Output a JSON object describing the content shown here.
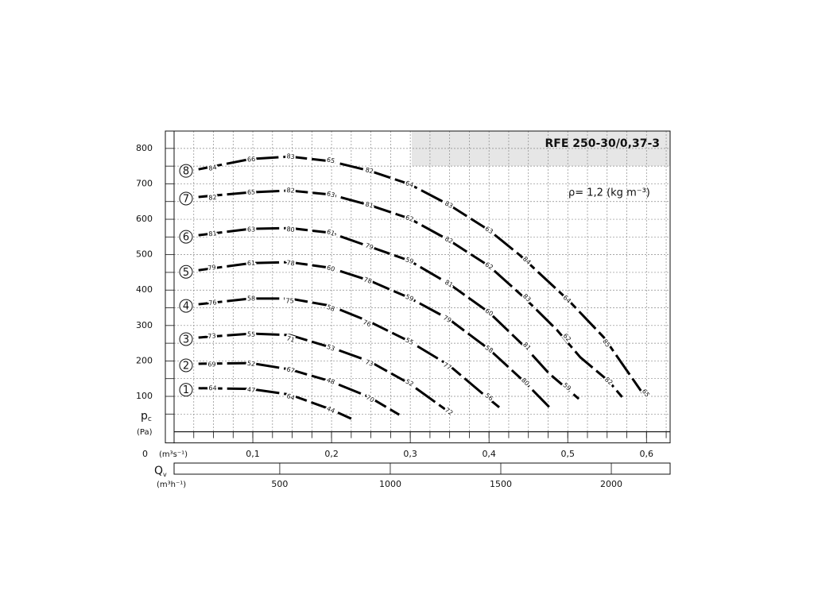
{
  "chart_data": {
    "type": "line",
    "title": "RFE 250-30/0,37-3",
    "note": "ρ= 1,2 (kg m⁻³)",
    "y_label": "p",
    "y_label_sub": "c",
    "y_unit": "(Pa)",
    "x_zero_label": "0",
    "x_unit": "(m³s⁻¹)",
    "x2_label": "Q",
    "x2_label_sub": "v",
    "x2_unit": "(m³h⁻¹)",
    "xlim": [
      0,
      0.63
    ],
    "ylim": [
      0,
      849
    ],
    "x2lim": [
      22,
      2266
    ],
    "xticks": [
      {
        "value": 0.1,
        "label": "0,1"
      },
      {
        "value": 0.2,
        "label": "0,2"
      },
      {
        "value": 0.3,
        "label": "0,3"
      },
      {
        "value": 0.4,
        "label": "0,4"
      },
      {
        "value": 0.5,
        "label": "0,5"
      },
      {
        "value": 0.6,
        "label": "0,6"
      }
    ],
    "x2ticks": [
      500,
      1000,
      1500,
      2000
    ],
    "yticks": [
      100,
      200,
      300,
      400,
      500,
      600,
      700,
      800
    ],
    "xgrid": [
      0.025,
      0.05,
      0.075,
      0.1,
      0.125,
      0.15,
      0.175,
      0.2,
      0.225,
      0.25,
      0.275,
      0.3,
      0.325,
      0.35,
      0.375,
      0.4,
      0.425,
      0.45,
      0.475,
      0.5,
      0.525,
      0.55,
      0.575,
      0.6,
      0.625
    ],
    "ygrid": [
      50,
      100,
      150,
      200,
      250,
      300,
      350,
      400,
      450,
      500,
      550,
      600,
      650,
      700,
      750,
      800
    ],
    "grid": true,
    "label_colors": {
      "efficiency": "#111111",
      "sound": "#b03030"
    },
    "series": [
      {
        "name": "1",
        "color": "#000000",
        "x": [
          0.031,
          0.097,
          0.147,
          0.198,
          0.225
        ],
        "values": [
          123,
          121,
          105,
          64,
          37
        ],
        "labels": [
          {
            "text": "64",
            "x": 0.049,
            "y": 123,
            "kind": "efficiency"
          },
          {
            "text": "47",
            "x": 0.098,
            "y": 118,
            "kind": "sound"
          },
          {
            "text": "64",
            "x": 0.148,
            "y": 98,
            "kind": "efficiency"
          },
          {
            "text": "44",
            "x": 0.199,
            "y": 62,
            "kind": "sound"
          }
        ]
      },
      {
        "name": "2",
        "color": "#000000",
        "x": [
          0.031,
          0.097,
          0.147,
          0.198,
          0.248,
          0.286
        ],
        "values": [
          192,
          194,
          176,
          143,
          98,
          48
        ],
        "labels": [
          {
            "text": "69",
            "x": 0.048,
            "y": 190,
            "kind": "efficiency"
          },
          {
            "text": "52",
            "x": 0.098,
            "y": 192,
            "kind": "sound"
          },
          {
            "text": "67",
            "x": 0.148,
            "y": 174,
            "kind": "efficiency"
          },
          {
            "text": "48",
            "x": 0.199,
            "y": 143,
            "kind": "sound"
          },
          {
            "text": "70",
            "x": 0.249,
            "y": 93,
            "kind": "efficiency"
          }
        ]
      },
      {
        "name": "3",
        "color": "#000000",
        "x": [
          0.031,
          0.097,
          0.147,
          0.198,
          0.248,
          0.299,
          0.344
        ],
        "values": [
          266,
          277,
          273,
          239,
          199,
          136,
          64
        ],
        "labels": [
          {
            "text": "73",
            "x": 0.048,
            "y": 270,
            "kind": "efficiency"
          },
          {
            "text": "55",
            "x": 0.098,
            "y": 275,
            "kind": "sound"
          },
          {
            "text": "71",
            "x": 0.148,
            "y": 261,
            "kind": "efficiency"
          },
          {
            "text": "53",
            "x": 0.199,
            "y": 237,
            "kind": "sound"
          },
          {
            "text": "73",
            "x": 0.248,
            "y": 194,
            "kind": "efficiency"
          },
          {
            "text": "52",
            "x": 0.299,
            "y": 138,
            "kind": "sound"
          },
          {
            "text": "72",
            "x": 0.349,
            "y": 57,
            "kind": "efficiency"
          }
        ]
      },
      {
        "name": "4",
        "color": "#000000",
        "x": [
          0.031,
          0.097,
          0.147,
          0.198,
          0.248,
          0.299,
          0.349,
          0.397,
          0.413
        ],
        "values": [
          360,
          376,
          376,
          356,
          311,
          255,
          188,
          98,
          69
        ],
        "labels": [
          {
            "text": "76",
            "x": 0.049,
            "y": 364,
            "kind": "efficiency"
          },
          {
            "text": "58",
            "x": 0.098,
            "y": 376,
            "kind": "sound"
          },
          {
            "text": "75",
            "x": 0.147,
            "y": 369,
            "kind": "efficiency"
          },
          {
            "text": "58",
            "x": 0.199,
            "y": 349,
            "kind": "sound"
          },
          {
            "text": "76",
            "x": 0.245,
            "y": 306,
            "kind": "efficiency"
          },
          {
            "text": "55",
            "x": 0.299,
            "y": 255,
            "kind": "sound"
          },
          {
            "text": "77",
            "x": 0.347,
            "y": 185,
            "kind": "efficiency"
          },
          {
            "text": "56",
            "x": 0.4,
            "y": 98,
            "kind": "sound"
          }
        ]
      },
      {
        "name": "5",
        "color": "#000000",
        "x": [
          0.031,
          0.097,
          0.147,
          0.198,
          0.248,
          0.299,
          0.349,
          0.4,
          0.445,
          0.479
        ],
        "values": [
          456,
          476,
          479,
          463,
          427,
          378,
          318,
          233,
          141,
          64
        ],
        "labels": [
          {
            "text": "79",
            "x": 0.048,
            "y": 463,
            "kind": "efficiency"
          },
          {
            "text": "61",
            "x": 0.098,
            "y": 476,
            "kind": "sound"
          },
          {
            "text": "78",
            "x": 0.148,
            "y": 476,
            "kind": "efficiency"
          },
          {
            "text": "60",
            "x": 0.199,
            "y": 461,
            "kind": "sound"
          },
          {
            "text": "78",
            "x": 0.246,
            "y": 427,
            "kind": "efficiency"
          },
          {
            "text": "59",
            "x": 0.299,
            "y": 378,
            "kind": "sound"
          },
          {
            "text": "79",
            "x": 0.347,
            "y": 318,
            "kind": "efficiency"
          },
          {
            "text": "58",
            "x": 0.4,
            "y": 233,
            "kind": "sound"
          },
          {
            "text": "80",
            "x": 0.446,
            "y": 141,
            "kind": "efficiency"
          }
        ]
      },
      {
        "name": "6",
        "color": "#000000",
        "x": [
          0.031,
          0.097,
          0.147,
          0.198,
          0.248,
          0.299,
          0.349,
          0.4,
          0.445,
          0.476,
          0.514
        ],
        "values": [
          555,
          573,
          575,
          562,
          523,
          483,
          418,
          337,
          241,
          165,
          93
        ],
        "labels": [
          {
            "text": "81",
            "x": 0.049,
            "y": 559,
            "kind": "efficiency"
          },
          {
            "text": "63",
            "x": 0.098,
            "y": 571,
            "kind": "sound"
          },
          {
            "text": "80",
            "x": 0.148,
            "y": 571,
            "kind": "efficiency"
          },
          {
            "text": "61",
            "x": 0.199,
            "y": 562,
            "kind": "sound"
          },
          {
            "text": "79",
            "x": 0.248,
            "y": 523,
            "kind": "efficiency"
          },
          {
            "text": "59",
            "x": 0.299,
            "y": 483,
            "kind": "sound"
          },
          {
            "text": "81",
            "x": 0.349,
            "y": 418,
            "kind": "efficiency"
          },
          {
            "text": "60",
            "x": 0.4,
            "y": 337,
            "kind": "sound"
          },
          {
            "text": "81",
            "x": 0.448,
            "y": 241,
            "kind": "efficiency"
          },
          {
            "text": "59",
            "x": 0.499,
            "y": 127,
            "kind": "sound"
          }
        ]
      },
      {
        "name": "7",
        "color": "#000000",
        "x": [
          0.031,
          0.097,
          0.147,
          0.198,
          0.248,
          0.299,
          0.349,
          0.4,
          0.445,
          0.486,
          0.516,
          0.552,
          0.569
        ],
        "values": [
          663,
          676,
          681,
          670,
          640,
          602,
          541,
          468,
          378,
          288,
          210,
          143,
          98
        ],
        "labels": [
          {
            "text": "82",
            "x": 0.049,
            "y": 661,
            "kind": "efficiency"
          },
          {
            "text": "65",
            "x": 0.098,
            "y": 676,
            "kind": "sound"
          },
          {
            "text": "82",
            "x": 0.148,
            "y": 681,
            "kind": "efficiency"
          },
          {
            "text": "63",
            "x": 0.199,
            "y": 670,
            "kind": "sound"
          },
          {
            "text": "81",
            "x": 0.248,
            "y": 640,
            "kind": "efficiency"
          },
          {
            "text": "62",
            "x": 0.299,
            "y": 602,
            "kind": "sound"
          },
          {
            "text": "82",
            "x": 0.349,
            "y": 541,
            "kind": "efficiency"
          },
          {
            "text": "62",
            "x": 0.4,
            "y": 468,
            "kind": "sound"
          },
          {
            "text": "83",
            "x": 0.448,
            "y": 378,
            "kind": "efficiency"
          },
          {
            "text": "62",
            "x": 0.499,
            "y": 266,
            "kind": "sound"
          },
          {
            "text": "82",
            "x": 0.552,
            "y": 143,
            "kind": "efficiency"
          }
        ]
      },
      {
        "name": "8",
        "color": "#000000",
        "x": [
          0.031,
          0.097,
          0.147,
          0.198,
          0.248,
          0.299,
          0.349,
          0.4,
          0.44,
          0.501,
          0.546,
          0.595
        ],
        "values": [
          741,
          770,
          777,
          764,
          737,
          699,
          641,
          569,
          497,
          371,
          266,
          109
        ],
        "labels": [
          {
            "text": "84",
            "x": 0.049,
            "y": 745,
            "kind": "efficiency"
          },
          {
            "text": "66",
            "x": 0.098,
            "y": 769,
            "kind": "sound"
          },
          {
            "text": "83",
            "x": 0.148,
            "y": 777,
            "kind": "efficiency"
          },
          {
            "text": "65",
            "x": 0.199,
            "y": 766,
            "kind": "sound"
          },
          {
            "text": "82",
            "x": 0.248,
            "y": 737,
            "kind": "efficiency"
          },
          {
            "text": "64",
            "x": 0.299,
            "y": 699,
            "kind": "sound"
          },
          {
            "text": "83",
            "x": 0.349,
            "y": 641,
            "kind": "efficiency"
          },
          {
            "text": "63",
            "x": 0.4,
            "y": 569,
            "kind": "sound"
          },
          {
            "text": "84",
            "x": 0.448,
            "y": 483,
            "kind": "efficiency"
          },
          {
            "text": "64",
            "x": 0.499,
            "y": 374,
            "kind": "sound"
          },
          {
            "text": "85",
            "x": 0.549,
            "y": 250,
            "kind": "efficiency"
          },
          {
            "text": "65",
            "x": 0.599,
            "y": 109,
            "kind": "sound"
          }
        ]
      }
    ]
  }
}
